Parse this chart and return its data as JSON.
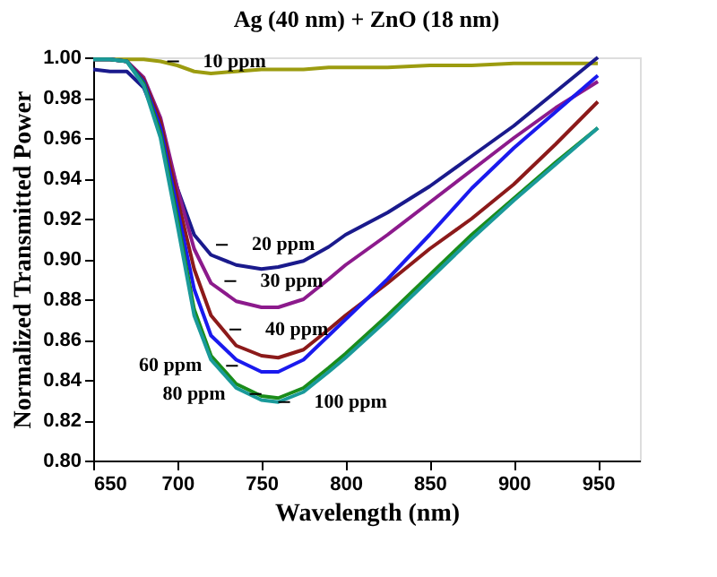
{
  "chart_data": {
    "type": "line",
    "title": "Ag (40 nm) + ZnO (18 nm)",
    "xlabel": "Wavelength (nm)",
    "ylabel": "Normalized Transmitted Power",
    "xlim": [
      650,
      975
    ],
    "xticks": [
      650,
      700,
      750,
      800,
      850,
      900,
      950
    ],
    "ylim": [
      0.8,
      1.0
    ],
    "yticks": [
      {
        "value": 0.8,
        "label": "0.80"
      },
      0.82,
      0.84,
      0.86,
      0.88,
      {
        "value": 0.9,
        "label": "0.90"
      },
      0.92,
      0.94,
      0.96,
      0.98,
      {
        "value": 1,
        "label": "1.00"
      }
    ],
    "grid": false,
    "marker": "none",
    "line_style": "solid",
    "x": [
      650,
      660,
      670,
      680,
      690,
      700,
      710,
      720,
      735,
      750,
      760,
      775,
      790,
      800,
      825,
      850,
      875,
      900,
      925,
      950
    ],
    "series": [
      {
        "color": "#9c9c10",
        "values": [
          0.999,
          0.999,
          0.999,
          0.999,
          0.998,
          0.996,
          0.993,
          0.992,
          0.993,
          0.994,
          0.994,
          0.994,
          0.995,
          0.995,
          0.995,
          0.996,
          0.996,
          0.997,
          0.997,
          0.997
        ]
      },
      {
        "color": "#1a1a8c",
        "values": [
          0.994,
          0.993,
          0.993,
          0.985,
          0.965,
          0.935,
          0.912,
          0.902,
          0.897,
          0.895,
          0.896,
          0.899,
          0.906,
          0.912,
          0.923,
          0.936,
          0.951,
          0.966,
          0.983,
          1.0
        ]
      },
      {
        "color": "#8c1a8c",
        "values": [
          0.999,
          0.999,
          0.998,
          0.99,
          0.97,
          0.935,
          0.905,
          0.888,
          0.879,
          0.876,
          0.876,
          0.88,
          0.89,
          0.897,
          0.912,
          0.928,
          0.944,
          0.96,
          0.975,
          0.988
        ]
      },
      {
        "color": "#8c1a1a",
        "values": [
          0.999,
          0.999,
          0.998,
          0.989,
          0.968,
          0.93,
          0.895,
          0.872,
          0.857,
          0.852,
          0.851,
          0.855,
          0.865,
          0.872,
          0.888,
          0.905,
          0.92,
          0.937,
          0.957,
          0.978
        ]
      },
      {
        "color": "#1a1aee",
        "values": [
          0.999,
          0.999,
          0.998,
          0.988,
          0.965,
          0.925,
          0.885,
          0.862,
          0.85,
          0.844,
          0.844,
          0.85,
          0.862,
          0.87,
          0.89,
          0.912,
          0.935,
          0.955,
          0.973,
          0.991
        ]
      },
      {
        "color": "#1a8c1a",
        "values": [
          0.999,
          0.999,
          0.998,
          0.987,
          0.962,
          0.92,
          0.875,
          0.852,
          0.838,
          0.832,
          0.831,
          0.836,
          0.846,
          0.853,
          0.872,
          0.892,
          0.912,
          0.93,
          0.948,
          0.965
        ]
      },
      {
        "color": "#1a9a9a",
        "values": [
          0.999,
          0.999,
          0.998,
          0.986,
          0.96,
          0.917,
          0.872,
          0.85,
          0.836,
          0.83,
          0.829,
          0.834,
          0.844,
          0.851,
          0.87,
          0.89,
          0.91,
          0.929,
          0.947,
          0.965
        ]
      }
    ],
    "annotations": [
      {
        "text": "10 ppm",
        "x": 694,
        "y": 0.998
      },
      {
        "text": "20 ppm",
        "x": 723,
        "y": 0.907
      },
      {
        "text": "30 ppm",
        "x": 728,
        "y": 0.889
      },
      {
        "text": "40 ppm",
        "x": 731,
        "y": 0.865
      },
      {
        "text": "60 ppm",
        "x": 736,
        "y": 0.847
      },
      {
        "text": "80 ppm",
        "x": 750,
        "y": 0.833
      },
      {
        "text": "100 ppm",
        "x": 760,
        "y": 0.829
      }
    ]
  }
}
